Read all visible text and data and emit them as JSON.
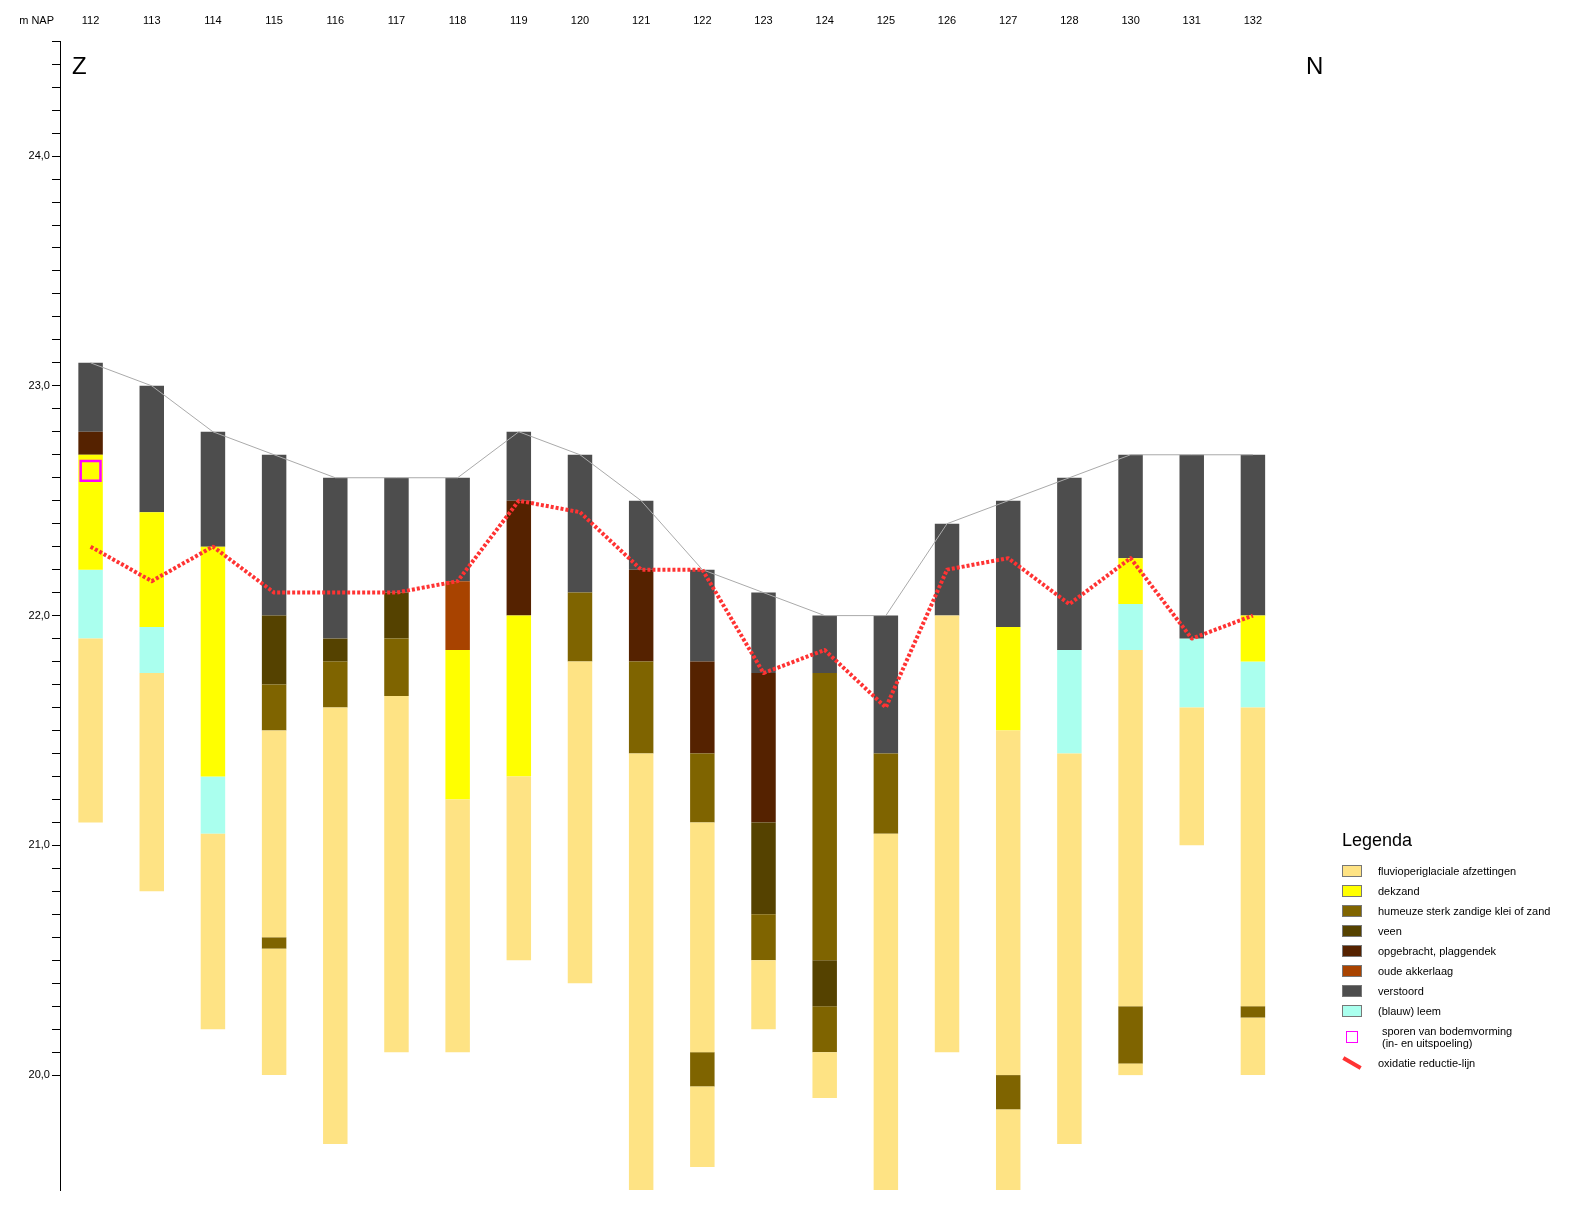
{
  "chart_data": {
    "type": "bar",
    "ylabel": "m NAP",
    "legend_title": "Legenda",
    "legend": "bottom right",
    "grid": false,
    "annotations": [
      "Z",
      "N"
    ],
    "categories": [
      "112",
      "113",
      "114",
      "115",
      "116",
      "117",
      "118",
      "119",
      "120",
      "121",
      "122",
      "123",
      "124",
      "125",
      "126",
      "127",
      "128",
      "130",
      "131",
      "132"
    ],
    "ylim": [
      19.5,
      24.5
    ],
    "yticks": [
      {
        "value": 20,
        "label": "20,0"
      },
      {
        "value": 20.1,
        "label": null
      },
      {
        "value": 20.2,
        "label": null
      },
      {
        "value": 20.3,
        "label": null
      },
      {
        "value": 20.4,
        "label": null
      },
      {
        "value": 20.5,
        "label": null
      },
      {
        "value": 20.6,
        "label": null
      },
      {
        "value": 20.7,
        "label": null
      },
      {
        "value": 20.8,
        "label": null
      },
      {
        "value": 20.9,
        "label": null
      },
      {
        "value": 21,
        "label": "21,0"
      },
      {
        "value": 21.1,
        "label": null
      },
      {
        "value": 21.2,
        "label": null
      },
      {
        "value": 21.3,
        "label": null
      },
      {
        "value": 21.4,
        "label": null
      },
      {
        "value": 21.5,
        "label": null
      },
      {
        "value": 21.6,
        "label": null
      },
      {
        "value": 21.7,
        "label": null
      },
      {
        "value": 21.8,
        "label": null
      },
      {
        "value": 21.9,
        "label": null
      },
      {
        "value": 22,
        "label": "22,0"
      },
      {
        "value": 22.1,
        "label": null
      },
      {
        "value": 22.2,
        "label": null
      },
      {
        "value": 22.3,
        "label": null
      },
      {
        "value": 22.4,
        "label": null
      },
      {
        "value": 22.5,
        "label": null
      },
      {
        "value": 22.6,
        "label": null
      },
      {
        "value": 22.7,
        "label": null
      },
      {
        "value": 22.8,
        "label": null
      },
      {
        "value": 22.9,
        "label": null
      },
      {
        "value": 23,
        "label": "23,0"
      },
      {
        "value": 23.1,
        "label": null
      },
      {
        "value": 23.2,
        "label": null
      },
      {
        "value": 23.3,
        "label": null
      },
      {
        "value": 23.4,
        "label": null
      },
      {
        "value": 23.5,
        "label": null
      },
      {
        "value": 23.6,
        "label": null
      },
      {
        "value": 23.7,
        "label": null
      },
      {
        "value": 23.8,
        "label": null
      },
      {
        "value": 23.9,
        "label": null
      },
      {
        "value": 24,
        "label": "24,0"
      },
      {
        "value": 24.1,
        "label": null
      },
      {
        "value": 24.2,
        "label": null
      },
      {
        "value": 24.3,
        "label": null
      },
      {
        "value": 24.4,
        "label": null
      },
      {
        "value": 24.5,
        "label": null
      }
    ],
    "series": [
      {
        "name": "fluvioperiglaciale afzettingen",
        "color": "#fee384",
        "base": [
          21.1,
          20.8,
          20.2,
          20.6,
          19.7,
          20.1,
          20.1,
          20.5,
          20.4,
          19.5,
          20.1,
          20.2,
          19.9,
          19.5,
          20.1,
          20.0,
          19.7,
          20.3,
          21.0,
          20.3
        ],
        "values": [
          0.8,
          0.95,
          0.85,
          0.9,
          1.9,
          1.55,
          1.1,
          0.8,
          1.4,
          1.9,
          1.0,
          0.3,
          0.2,
          1.55,
          1.9,
          1.5,
          1.7,
          1.55,
          0.6,
          1.3
        ]
      },
      {
        "name": "dekzand",
        "color": "#ffff00",
        "base": [
          22.2,
          21.95,
          21.3,
          null,
          null,
          null,
          21.2,
          21.3,
          null,
          null,
          null,
          null,
          null,
          null,
          null,
          21.5,
          null,
          22.05,
          null,
          21.8
        ],
        "values": [
          0.5,
          0.5,
          1.0,
          null,
          null,
          null,
          0.65,
          0.7,
          null,
          null,
          null,
          null,
          null,
          null,
          null,
          0.45,
          null,
          0.2,
          null,
          0.2
        ]
      },
      {
        "name": "humeuze sterk zandige klei of zand",
        "color": "#7f6400",
        "base": [
          null,
          null,
          null,
          21.5,
          21.6,
          21.65,
          null,
          null,
          21.8,
          21.4,
          21.1,
          20.5,
          20.5,
          21.05,
          null,
          null,
          null,
          null,
          null,
          null
        ],
        "values": [
          null,
          null,
          null,
          0.2,
          0.2,
          0.25,
          null,
          null,
          0.3,
          0.4,
          0.3,
          0.2,
          1.25,
          0.35,
          null,
          null,
          null,
          null,
          null,
          null
        ]
      },
      {
        "name": "veen",
        "color": "#554200",
        "base": [
          null,
          null,
          null,
          21.7,
          21.8,
          21.9,
          null,
          null,
          null,
          null,
          null,
          20.7,
          20.3,
          null,
          null,
          null,
          null,
          null,
          null,
          null
        ],
        "values": [
          null,
          null,
          null,
          0.3,
          0.1,
          0.2,
          null,
          null,
          null,
          null,
          null,
          0.4,
          0.2,
          null,
          null,
          null,
          null,
          null,
          null,
          null
        ]
      },
      {
        "name": "opgebracht, plaggendek",
        "color": "#552200",
        "base": [
          22.7,
          null,
          null,
          null,
          null,
          null,
          null,
          22.0,
          null,
          21.8,
          21.4,
          21.1,
          null,
          null,
          null,
          null,
          null,
          null,
          null,
          null
        ],
        "values": [
          0.1,
          null,
          null,
          null,
          null,
          null,
          null,
          0.5,
          null,
          0.4,
          0.4,
          0.65,
          null,
          null,
          null,
          null,
          null,
          null,
          null,
          null
        ]
      },
      {
        "name": "oude akkerlaag",
        "color": "#a84300",
        "base": [
          null,
          null,
          null,
          null,
          null,
          null,
          21.85,
          null,
          null,
          null,
          null,
          null,
          null,
          null,
          null,
          null,
          null,
          null,
          null,
          null
        ],
        "values": [
          null,
          null,
          null,
          null,
          null,
          null,
          0.3,
          null,
          null,
          null,
          null,
          null,
          null,
          null,
          null,
          null,
          null,
          null,
          null,
          null
        ]
      },
      {
        "name": "verstoord",
        "color": "#4d4d4d",
        "base": [
          22.8,
          22.45,
          22.3,
          22.0,
          21.9,
          22.1,
          22.15,
          22.5,
          22.1,
          22.2,
          21.8,
          21.75,
          21.75,
          21.4,
          22.0,
          21.95,
          21.85,
          22.25,
          21.9,
          22.0
        ],
        "values": [
          0.3,
          0.55,
          0.5,
          0.7,
          0.7,
          0.5,
          0.45,
          0.3,
          0.6,
          0.3,
          0.4,
          0.35,
          0.25,
          0.6,
          0.4,
          0.55,
          0.75,
          0.45,
          0.8,
          0.7
        ]
      },
      {
        "name": "(blauw) leem",
        "color": "#aaffee",
        "base": [
          21.9,
          21.75,
          21.05,
          null,
          null,
          null,
          null,
          null,
          null,
          null,
          null,
          null,
          null,
          null,
          null,
          null,
          21.4,
          21.85,
          21.6,
          21.6
        ],
        "values": [
          0.3,
          0.2,
          0.25,
          null,
          null,
          null,
          null,
          null,
          null,
          null,
          null,
          null,
          null,
          null,
          null,
          null,
          0.45,
          0.2,
          0.3,
          0.2
        ]
      },
      {
        "name": "sporen van bodemvorming\n(in- en uitspoeling)",
        "type": "scatter",
        "marker": "square",
        "color": "#ff00ff",
        "x": [
          "112"
        ],
        "values": [
          22.63
        ]
      },
      {
        "name": "oxidatie reductie-lijn",
        "type": "line",
        "marker": "none",
        "line_style": "dashed",
        "color": "#ff3333",
        "values": [
          22.3,
          22.15,
          22.3,
          22.1,
          22.1,
          22.1,
          22.15,
          22.5,
          22.45,
          22.2,
          22.2,
          21.75,
          21.85,
          21.6,
          22.2,
          22.25,
          22.05,
          22.25,
          21.9,
          22.0
        ]
      },
      {
        "color": "#fee384",
        "base": [
          null,
          null,
          null,
          20.0,
          null,
          null,
          null,
          null,
          null,
          null,
          19.6,
          null,
          null,
          null,
          null,
          19.5,
          null,
          20.0,
          null,
          20.0
        ],
        "values": [
          null,
          null,
          null,
          0.55,
          null,
          null,
          null,
          null,
          null,
          null,
          0.35,
          null,
          null,
          null,
          null,
          0.35,
          null,
          0.05,
          null,
          0.25
        ]
      },
      {
        "color": "#7f6400",
        "base": [
          null,
          null,
          null,
          20.55,
          null,
          null,
          null,
          null,
          null,
          null,
          19.95,
          null,
          20.1,
          null,
          null,
          19.85,
          null,
          20.05,
          null,
          20.25
        ],
        "values": [
          null,
          null,
          null,
          0.05,
          null,
          null,
          null,
          null,
          null,
          null,
          0.15,
          null,
          0.2,
          null,
          null,
          0.15,
          null,
          0.25,
          null,
          0.05
        ]
      },
      {
        "type": "line",
        "marker": "none",
        "line_style": "solid",
        "color": "#aaaaaa",
        "values": [
          23.1,
          23.0,
          22.8,
          22.7,
          22.6,
          22.6,
          22.6,
          22.8,
          22.7,
          22.5,
          22.2,
          22.1,
          22.0,
          22.0,
          22.4,
          22.5,
          22.6,
          22.7,
          22.7,
          22.7
        ]
      }
    ]
  }
}
